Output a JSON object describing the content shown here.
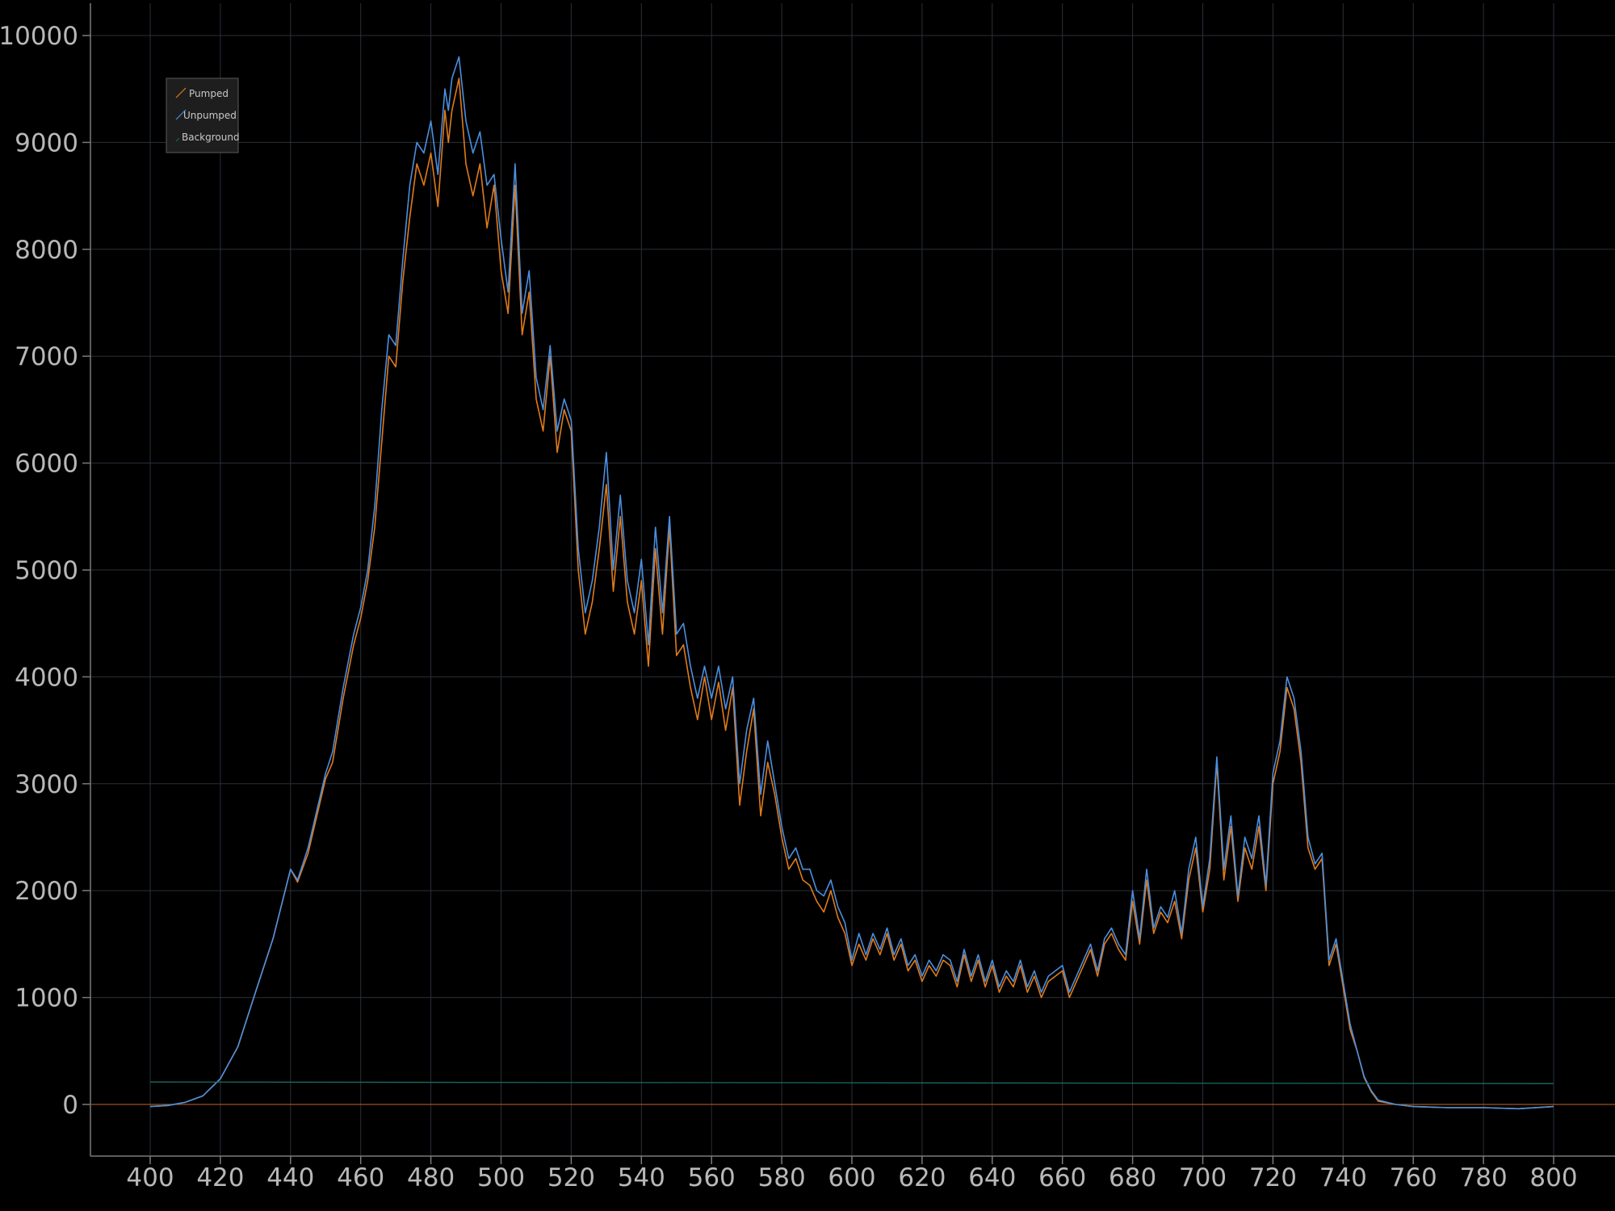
{
  "chart_data": {
    "type": "line",
    "title": "",
    "xlabel": "",
    "ylabel": "",
    "xlim": [
      383,
      2000
    ],
    "ylim": [
      -500,
      10300
    ],
    "x_ticks": [
      400,
      420,
      440,
      460,
      480,
      500,
      520,
      540,
      560,
      580,
      600,
      620,
      640,
      660,
      680,
      700,
      720,
      740,
      760,
      780,
      800
    ],
    "y_ticks": [
      0,
      1000,
      2000,
      3000,
      4000,
      5000,
      6000,
      7000,
      8000,
      9000,
      10000
    ],
    "grid": true,
    "background": "#000000",
    "legend": {
      "placement": "top-left",
      "entries": [
        "Pumped",
        "Unpumped",
        "Background"
      ]
    },
    "series": [
      {
        "name": "Pumped",
        "color": "#e07b1a",
        "x": [
          400,
          405,
          410,
          415,
          420,
          425,
          430,
          435,
          440,
          442,
          445,
          450,
          452,
          455,
          458,
          460,
          462,
          464,
          466,
          468,
          470,
          472,
          474,
          476,
          478,
          480,
          482,
          484,
          485,
          486,
          488,
          490,
          492,
          494,
          496,
          498,
          500,
          502,
          504,
          506,
          508,
          510,
          512,
          514,
          516,
          518,
          520,
          522,
          524,
          526,
          528,
          530,
          532,
          534,
          536,
          538,
          540,
          542,
          544,
          546,
          548,
          550,
          552,
          554,
          556,
          558,
          560,
          562,
          564,
          566,
          568,
          570,
          572,
          574,
          576,
          578,
          580,
          582,
          584,
          586,
          588,
          590,
          592,
          594,
          596,
          598,
          600,
          602,
          604,
          606,
          608,
          610,
          612,
          614,
          616,
          618,
          620,
          622,
          624,
          626,
          628,
          630,
          632,
          634,
          636,
          638,
          640,
          642,
          644,
          646,
          648,
          650,
          652,
          654,
          656,
          658,
          660,
          662,
          664,
          666,
          668,
          670,
          672,
          674,
          676,
          678,
          680,
          682,
          684,
          686,
          688,
          690,
          692,
          694,
          696,
          698,
          700,
          702,
          704,
          706,
          708,
          710,
          712,
          714,
          716,
          718,
          720,
          722,
          724,
          726,
          728,
          730,
          732,
          734,
          736,
          738,
          740,
          742,
          744,
          746,
          748,
          750,
          755,
          760,
          770,
          780,
          790,
          800
        ],
        "y": [
          -20,
          -10,
          20,
          80,
          240,
          540,
          1050,
          1550,
          2200,
          2080,
          2350,
          3050,
          3200,
          3800,
          4300,
          4550,
          4900,
          5400,
          6200,
          7000,
          6900,
          7700,
          8300,
          8800,
          8600,
          8900,
          8400,
          9300,
          9000,
          9300,
          9600,
          8800,
          8500,
          8800,
          8200,
          8600,
          7800,
          7400,
          8600,
          7200,
          7600,
          6600,
          6300,
          7000,
          6100,
          6500,
          6300,
          5000,
          4400,
          4700,
          5200,
          5800,
          4800,
          5500,
          4700,
          4400,
          4900,
          4100,
          5200,
          4400,
          5400,
          4200,
          4300,
          3900,
          3600,
          4000,
          3600,
          3950,
          3500,
          3900,
          2800,
          3300,
          3700,
          2700,
          3200,
          2900,
          2500,
          2200,
          2300,
          2100,
          2050,
          1900,
          1800,
          2000,
          1750,
          1600,
          1300,
          1500,
          1350,
          1550,
          1400,
          1600,
          1350,
          1500,
          1250,
          1350,
          1150,
          1300,
          1200,
          1350,
          1300,
          1100,
          1400,
          1150,
          1350,
          1100,
          1300,
          1050,
          1200,
          1100,
          1300,
          1050,
          1200,
          1000,
          1150,
          1200,
          1250,
          1000,
          1150,
          1300,
          1450,
          1200,
          1500,
          1600,
          1450,
          1350,
          1900,
          1500,
          2100,
          1600,
          1800,
          1700,
          1900,
          1550,
          2100,
          2400,
          1800,
          2200,
          3200,
          2100,
          2600,
          1900,
          2400,
          2200,
          2600,
          2000,
          3000,
          3300,
          3900,
          3700,
          3200,
          2400,
          2200,
          2300,
          1300,
          1500,
          1100,
          700,
          500,
          250,
          120,
          30,
          0,
          -20,
          -30,
          -30,
          -40,
          -20
        ]
      },
      {
        "name": "Unpumped",
        "color": "#4a8fe0",
        "x": [
          400,
          405,
          410,
          415,
          420,
          425,
          430,
          435,
          440,
          442,
          445,
          450,
          452,
          455,
          458,
          460,
          462,
          464,
          466,
          468,
          470,
          472,
          474,
          476,
          478,
          480,
          482,
          484,
          485,
          486,
          488,
          490,
          492,
          494,
          496,
          498,
          500,
          502,
          504,
          506,
          508,
          510,
          512,
          514,
          516,
          518,
          520,
          522,
          524,
          526,
          528,
          530,
          532,
          534,
          536,
          538,
          540,
          542,
          544,
          546,
          548,
          550,
          552,
          554,
          556,
          558,
          560,
          562,
          564,
          566,
          568,
          570,
          572,
          574,
          576,
          578,
          580,
          582,
          584,
          586,
          588,
          590,
          592,
          594,
          596,
          598,
          600,
          602,
          604,
          606,
          608,
          610,
          612,
          614,
          616,
          618,
          620,
          622,
          624,
          626,
          628,
          630,
          632,
          634,
          636,
          638,
          640,
          642,
          644,
          646,
          648,
          650,
          652,
          654,
          656,
          658,
          660,
          662,
          664,
          666,
          668,
          670,
          672,
          674,
          676,
          678,
          680,
          682,
          684,
          686,
          688,
          690,
          692,
          694,
          696,
          698,
          700,
          702,
          704,
          706,
          708,
          710,
          712,
          714,
          716,
          718,
          720,
          722,
          724,
          726,
          728,
          730,
          732,
          734,
          736,
          738,
          740,
          742,
          744,
          746,
          748,
          750,
          755,
          760,
          770,
          780,
          790,
          800
        ],
        "y": [
          -20,
          -10,
          20,
          80,
          240,
          540,
          1050,
          1550,
          2200,
          2100,
          2400,
          3100,
          3300,
          3900,
          4400,
          4650,
          5000,
          5600,
          6500,
          7200,
          7100,
          7900,
          8600,
          9000,
          8900,
          9200,
          8700,
          9500,
          9300,
          9600,
          9800,
          9200,
          8900,
          9100,
          8600,
          8700,
          8100,
          7600,
          8800,
          7400,
          7800,
          6800,
          6500,
          7100,
          6300,
          6600,
          6400,
          5200,
          4600,
          4900,
          5400,
          6100,
          5000,
          5700,
          4900,
          4600,
          5100,
          4300,
          5400,
          4600,
          5500,
          4400,
          4500,
          4100,
          3800,
          4100,
          3800,
          4100,
          3700,
          4000,
          3000,
          3500,
          3800,
          2900,
          3400,
          3000,
          2600,
          2300,
          2400,
          2200,
          2200,
          2000,
          1950,
          2100,
          1850,
          1700,
          1350,
          1600,
          1400,
          1600,
          1450,
          1650,
          1400,
          1550,
          1300,
          1400,
          1200,
          1350,
          1250,
          1400,
          1350,
          1150,
          1450,
          1200,
          1400,
          1150,
          1350,
          1100,
          1250,
          1150,
          1350,
          1100,
          1250,
          1050,
          1200,
          1250,
          1300,
          1050,
          1200,
          1350,
          1500,
          1250,
          1550,
          1650,
          1500,
          1400,
          2000,
          1550,
          2200,
          1650,
          1850,
          1750,
          2000,
          1600,
          2200,
          2500,
          1850,
          2300,
          3250,
          2200,
          2700,
          1950,
          2500,
          2300,
          2700,
          2050,
          3100,
          3400,
          4000,
          3800,
          3300,
          2500,
          2250,
          2350,
          1350,
          1550,
          1150,
          750,
          500,
          260,
          130,
          40,
          0,
          -20,
          -30,
          -30,
          -40,
          -20
        ]
      },
      {
        "name": "Background",
        "color": "#1c6b66",
        "x": [
          400,
          800
        ],
        "y": [
          210,
          195
        ]
      }
    ]
  }
}
